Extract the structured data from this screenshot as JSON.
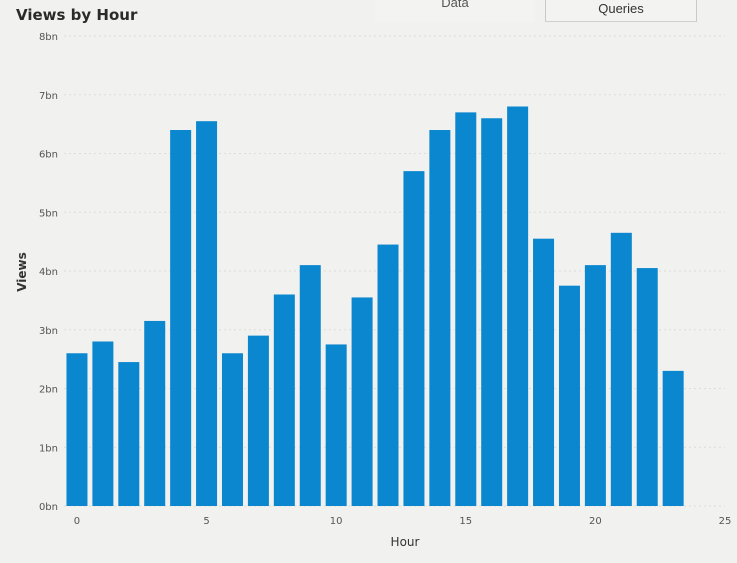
{
  "tabs": {
    "data_label": "Data",
    "queries_label": "Queries"
  },
  "chart_data": {
    "type": "bar",
    "title": "Views by Hour",
    "xlabel": "Hour",
    "ylabel": "Views",
    "x": [
      0,
      1,
      2,
      3,
      4,
      5,
      6,
      7,
      8,
      9,
      10,
      11,
      12,
      13,
      14,
      15,
      16,
      17,
      18,
      19,
      20,
      21,
      22,
      23
    ],
    "values": [
      2.6,
      2.8,
      2.45,
      3.15,
      6.4,
      6.55,
      2.6,
      2.9,
      3.6,
      4.1,
      2.75,
      3.55,
      4.45,
      5.7,
      6.4,
      6.7,
      6.6,
      6.8,
      4.55,
      3.75,
      4.1,
      4.65,
      4.05,
      2.3
    ],
    "value_unit": "bn",
    "ylim": [
      0,
      8
    ],
    "xlim": [
      -0.5,
      25
    ],
    "yticks": [
      "0bn",
      "1bn",
      "2bn",
      "3bn",
      "4bn",
      "5bn",
      "6bn",
      "7bn",
      "8bn"
    ],
    "xticks": [
      "0",
      "5",
      "10",
      "15",
      "20",
      "25"
    ],
    "bar_color": "#0b87cf",
    "grid": true
  }
}
